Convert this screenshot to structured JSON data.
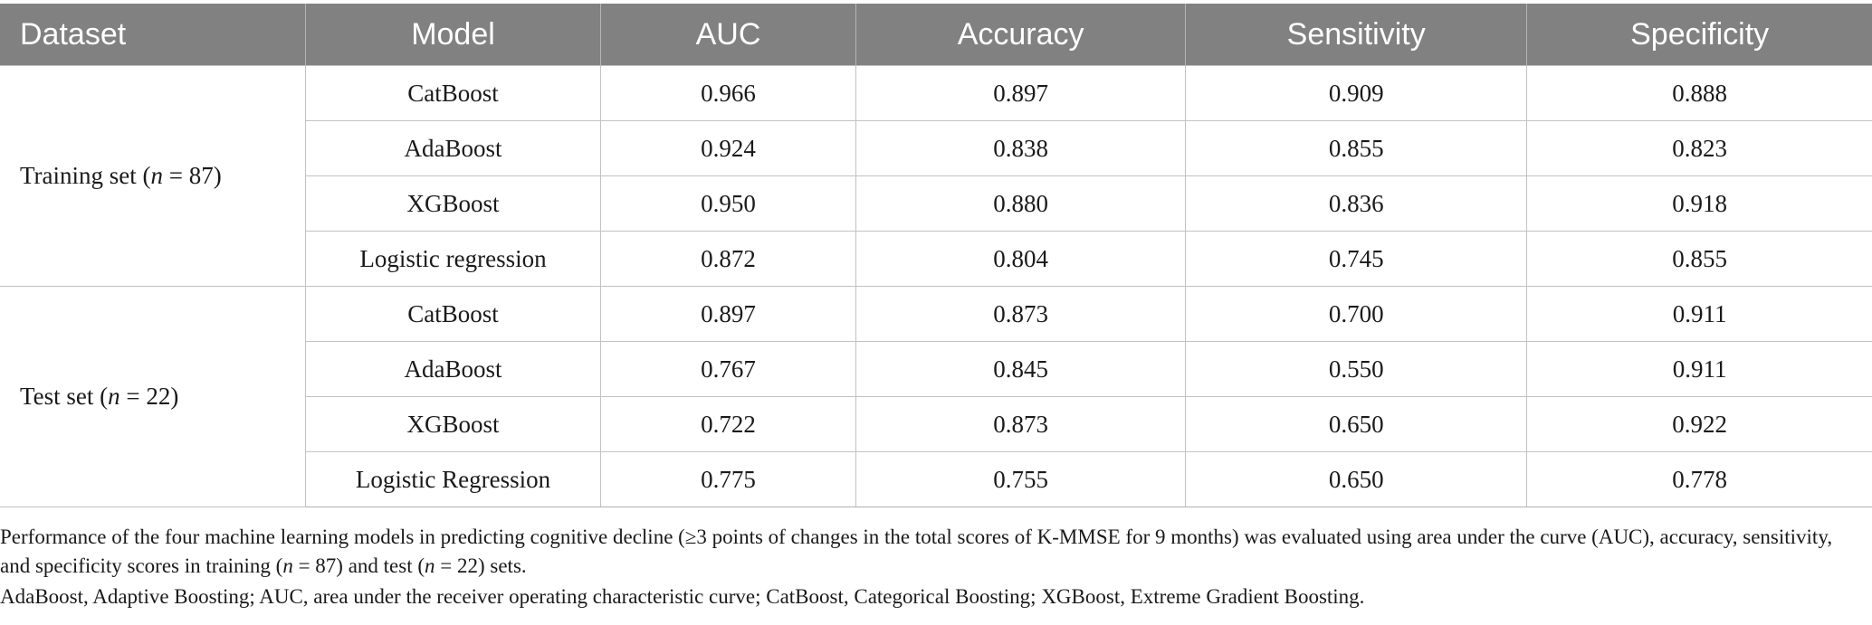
{
  "table": {
    "headers": [
      "Dataset",
      "Model",
      "AUC",
      "Accuracy",
      "Sensitivity",
      "Specificity"
    ],
    "groups": [
      {
        "label_prefix": "Training set (",
        "label_italic": "n",
        "label_suffix": " = 87)",
        "rows": [
          {
            "model": "CatBoost",
            "auc": "0.966",
            "accuracy": "0.897",
            "sensitivity": "0.909",
            "specificity": "0.888"
          },
          {
            "model": "AdaBoost",
            "auc": "0.924",
            "accuracy": "0.838",
            "sensitivity": "0.855",
            "specificity": "0.823"
          },
          {
            "model": "XGBoost",
            "auc": "0.950",
            "accuracy": "0.880",
            "sensitivity": "0.836",
            "specificity": "0.918"
          },
          {
            "model": "Logistic regression",
            "auc": "0.872",
            "accuracy": "0.804",
            "sensitivity": "0.745",
            "specificity": "0.855"
          }
        ]
      },
      {
        "label_prefix": "Test set (",
        "label_italic": "n",
        "label_suffix": " = 22)",
        "rows": [
          {
            "model": "CatBoost",
            "auc": "0.897",
            "accuracy": "0.873",
            "sensitivity": "0.700",
            "specificity": "0.911"
          },
          {
            "model": "AdaBoost",
            "auc": "0.767",
            "accuracy": "0.845",
            "sensitivity": "0.550",
            "specificity": "0.911"
          },
          {
            "model": "XGBoost",
            "auc": "0.722",
            "accuracy": "0.873",
            "sensitivity": "0.650",
            "specificity": "0.922"
          },
          {
            "model": "Logistic Regression",
            "auc": "0.775",
            "accuracy": "0.755",
            "sensitivity": "0.650",
            "specificity": "0.778"
          }
        ]
      }
    ]
  },
  "footnote": {
    "part1": "Performance of the four machine learning models in predicting cognitive decline (≥3 points of changes in the total scores of K-MMSE for 9 months) was evaluated using area under the curve (AUC), accuracy, sensitivity, and specificity scores in training (",
    "n_italic": "n",
    "part2": " = 87) and test (",
    "part3": " = 22) sets.",
    "abbreviations": "AdaBoost, Adaptive Boosting; AUC, area under the receiver operating characteristic curve; CatBoost, Categorical Boosting; XGBoost, Extreme Gradient Boosting."
  }
}
